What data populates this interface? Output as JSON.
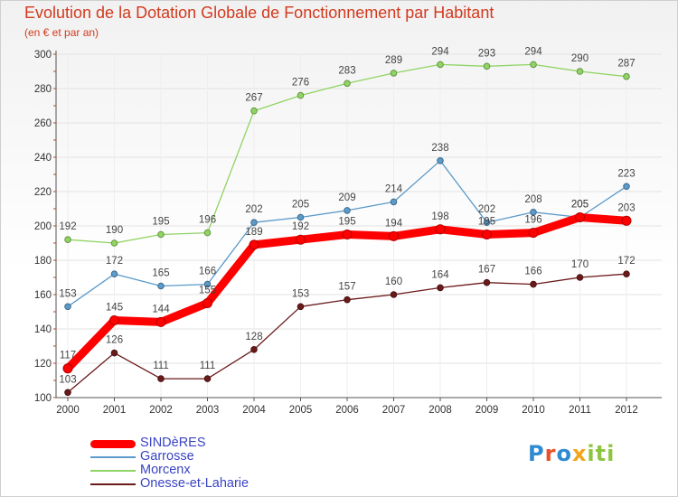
{
  "title": "Evolution de la Dotation Globale de Fonctionnement par Habitant",
  "subtitle": "(en € et par an)",
  "brand": {
    "logo_letters": [
      "P",
      "r",
      "o",
      "x",
      "i",
      "t",
      "i"
    ],
    "logo_colors": [
      "#2e8bcf",
      "#e8512a",
      "#2e8bcf",
      "#f2a51a",
      "#8cc63e",
      "#8cc63e",
      "#8cc63e"
    ]
  },
  "chart_data": {
    "type": "line",
    "title": "Evolution de la Dotation Globale de Fonctionnement par Habitant",
    "subtitle": "(en € et par an)",
    "xlabel": "",
    "ylabel": "",
    "x": [
      "2000",
      "2001",
      "2002",
      "2003",
      "2004",
      "2005",
      "2006",
      "2007",
      "2008",
      "2009",
      "2010",
      "2011",
      "2012"
    ],
    "ylim": [
      100,
      300
    ],
    "yticks": [
      100,
      120,
      140,
      160,
      180,
      200,
      220,
      240,
      260,
      280,
      300
    ],
    "legend_position": "bottom-left",
    "series": [
      {
        "name": "Onesse-et-Laharie",
        "color": "#6b1a1a",
        "emphasis": false,
        "values": [
          103,
          126,
          111,
          111,
          128,
          153,
          157,
          160,
          164,
          167,
          166,
          170,
          172
        ]
      },
      {
        "name": "Morcenx",
        "color": "#90d463",
        "emphasis": false,
        "values": [
          192,
          190,
          195,
          196,
          267,
          276,
          283,
          289,
          294,
          293,
          294,
          290,
          287
        ]
      },
      {
        "name": "Garrosse",
        "color": "#5b9ac9",
        "emphasis": false,
        "values": [
          153,
          172,
          165,
          166,
          202,
          205,
          209,
          214,
          238,
          202,
          208,
          205,
          223
        ]
      },
      {
        "name": "SINDèRES",
        "color": "#ff0000",
        "emphasis": true,
        "values": [
          117,
          145,
          144,
          155,
          189,
          192,
          195,
          194,
          198,
          195,
          196,
          205,
          203
        ]
      }
    ],
    "legend_order": [
      "SINDèRES",
      "Garrosse",
      "Morcenx",
      "Onesse-et-Laharie"
    ]
  }
}
